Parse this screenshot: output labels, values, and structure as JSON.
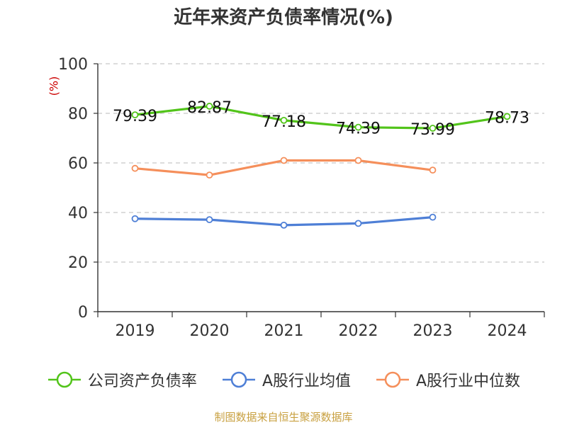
{
  "chart_data": {
    "type": "line",
    "title": "近年来资产负债率情况(%)",
    "ylabel": "(%)",
    "categories": [
      "2019",
      "2020",
      "2021",
      "2022",
      "2023",
      "2024"
    ],
    "ylim": [
      0,
      100
    ],
    "yticks": [
      0,
      20,
      40,
      60,
      80,
      100
    ],
    "grid": true,
    "legend_position": "bottom",
    "series": [
      {
        "name": "公司资产负债率",
        "color": "#52c41a",
        "values": [
          79.39,
          82.87,
          77.18,
          74.39,
          73.99,
          78.73
        ],
        "labels": [
          "79.39",
          "82.87",
          "77.18",
          "74.39",
          "73.99",
          "78.73"
        ]
      },
      {
        "name": "A股行业均值",
        "color": "#4e7fd6",
        "values": [
          37.5,
          37.1,
          34.9,
          35.6,
          38.1,
          null
        ]
      },
      {
        "name": "A股行业中位数",
        "color": "#f58f5b",
        "values": [
          57.8,
          55.1,
          61.0,
          61.0,
          57.1,
          null
        ]
      }
    ]
  },
  "source": "制图数据来自恒生聚源数据库"
}
